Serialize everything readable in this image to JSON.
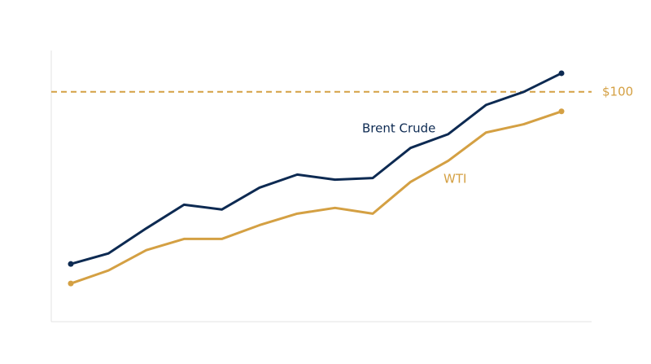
{
  "chart_data": {
    "type": "line",
    "categories": [
      null,
      null,
      null,
      null,
      null,
      null,
      null,
      null,
      null,
      null,
      null,
      null,
      null,
      null
    ],
    "series": [
      {
        "name": "Brent Crude",
        "color": "#0d2a52",
        "values": [
          25.1,
          29.7,
          40.6,
          50.9,
          48.8,
          58.3,
          64.0,
          61.8,
          62.5,
          75.6,
          81.6,
          94.3,
          100.0,
          108.1
        ]
      },
      {
        "name": "WTI",
        "color": "#d4a043",
        "values": [
          16.6,
          22.3,
          31.1,
          36.0,
          36.0,
          42.0,
          47.0,
          49.5,
          47.0,
          60.8,
          70.0,
          82.3,
          85.9,
          91.5
        ]
      }
    ],
    "ylim": [
      0,
      118
    ],
    "reference_line": {
      "value": 100,
      "label": "$100",
      "color": "#d4a043"
    }
  }
}
